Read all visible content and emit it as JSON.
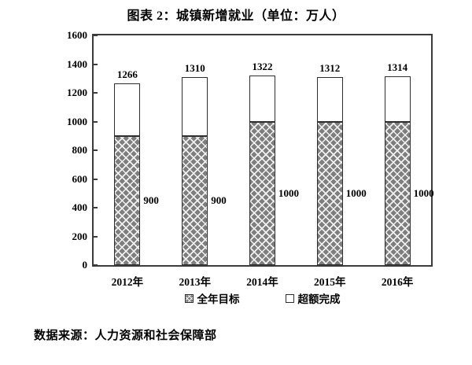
{
  "page": {
    "title": "图表 2：城镇新增就业（单位：万人）",
    "source_note": "数据来源：人力资源和社会保障部"
  },
  "colors": {
    "frame_border": "#3c3c3c",
    "bar_border": "#2e2e2e",
    "hatch_fill": "#7e7e7e",
    "hatch_line": "#f1f1f1",
    "bar_white": "#ffffff",
    "text": "#000000"
  },
  "legend": {
    "items": [
      {
        "label": "全年目标",
        "swatch": "hatched"
      },
      {
        "label": "超额完成",
        "swatch": "white"
      }
    ]
  },
  "chart_data": {
    "type": "bar",
    "stacked": true,
    "title": "图表 2：城镇新增就业（单位：万人）",
    "categories": [
      "2012年",
      "2013年",
      "2014年",
      "2015年",
      "2016年"
    ],
    "series": [
      {
        "name": "全年目标",
        "style": "hatched",
        "values": [
          900,
          900,
          1000,
          1000,
          1000
        ]
      },
      {
        "name": "超额完成",
        "style": "white",
        "values": [
          366,
          410,
          322,
          312,
          314
        ]
      }
    ],
    "totals": [
      1266,
      1310,
      1322,
      1312,
      1314
    ],
    "segment_labels": [
      900,
      900,
      1000,
      1000,
      1000
    ],
    "ylim": [
      0,
      1600
    ],
    "ytick_step": 200,
    "grid": false,
    "legend_position": "bottom"
  }
}
